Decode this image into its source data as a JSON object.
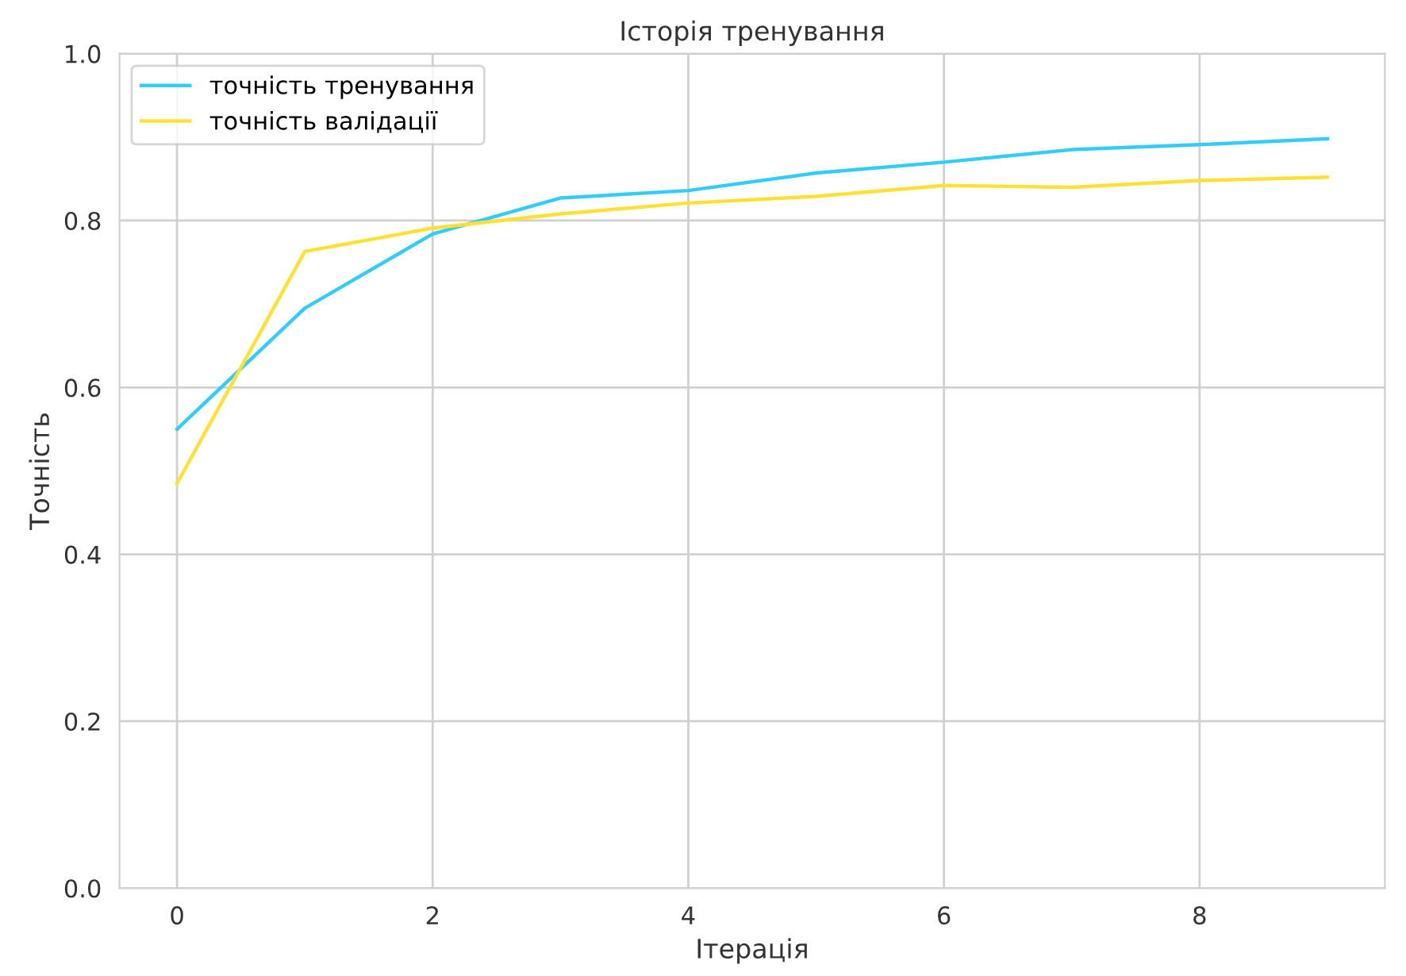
{
  "chart_data": {
    "type": "line",
    "title": "Історія тренування",
    "xlabel": "Ітерація",
    "ylabel": "Точність",
    "x": [
      0,
      1,
      2,
      3,
      4,
      5,
      6,
      7,
      8,
      9
    ],
    "series": [
      {
        "name": "точність тренування",
        "color": "#33ccff",
        "values": [
          0.55,
          0.695,
          0.784,
          0.827,
          0.836,
          0.857,
          0.87,
          0.885,
          0.891,
          0.898
        ]
      },
      {
        "name": "точність валідації",
        "color": "#ffe033",
        "values": [
          0.485,
          0.763,
          0.791,
          0.808,
          0.821,
          0.829,
          0.842,
          0.84,
          0.848,
          0.852
        ]
      }
    ],
    "xlim": [
      -0.45,
      9.45
    ],
    "ylim": [
      0.0,
      1.0
    ],
    "xticks": [
      0,
      2,
      4,
      6,
      8
    ],
    "yticks": [
      {
        "value": 0.0,
        "label": "0.0"
      },
      0.2,
      0.4,
      0.6,
      0.8,
      {
        "value": 1.0,
        "label": "1.0"
      }
    ],
    "grid": true,
    "legend": "top left",
    "marker": "none",
    "line_style": "solid"
  }
}
